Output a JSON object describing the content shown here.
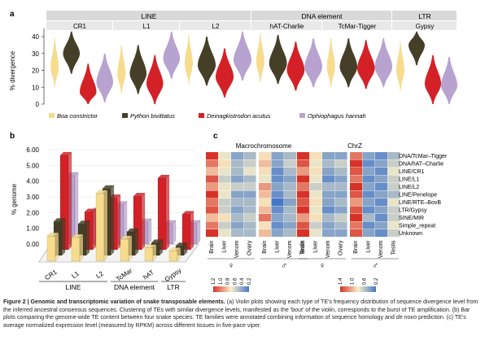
{
  "figure": {
    "panel_labels": [
      "a",
      "b",
      "c"
    ],
    "species_colors": {
      "boa": "#f7dc8d",
      "python": "#453f28",
      "deinagk": "#d32127",
      "ophio": "#b8a2cf"
    },
    "legend": [
      {
        "label": "Boa constrictor",
        "color": "#f7dc8d"
      },
      {
        "label": "Python bivittatus",
        "color": "#453f28"
      },
      {
        "label": "Deinagkistrodon acutus",
        "color": "#d32127"
      },
      {
        "label": "Ophiophagus hannah",
        "color": "#b8a2cf"
      }
    ]
  },
  "chart_data": [
    {
      "type": "violin",
      "panel": "a",
      "ylabel": "% divergence",
      "ylim": [
        0,
        45
      ],
      "yticks": [
        0,
        10,
        20,
        30,
        40
      ],
      "groups": [
        {
          "name": "LINE",
          "families": [
            "CR1",
            "L1",
            "L2"
          ]
        },
        {
          "name": "DNA element",
          "families": [
            "hAT-Charlie",
            "TcMar-Tigger"
          ]
        },
        {
          "name": "LTR",
          "families": [
            "Gypsy"
          ]
        }
      ],
      "series": [
        {
          "name": "Boa constrictor",
          "modes": [
            22,
            18,
            24,
            25,
            22,
            20
          ]
        },
        {
          "name": "Python bivittatus",
          "modes": [
            30,
            18,
            23,
            24,
            22,
            35
          ]
        },
        {
          "name": "Deinagkistrodon acutus",
          "modes": [
            7,
            12,
            16,
            20,
            21,
            12
          ]
        },
        {
          "name": "Ophiophagus hannah",
          "modes": [
            13,
            27,
            26,
            22,
            22,
            11
          ]
        }
      ]
    },
    {
      "type": "bar",
      "panel": "b",
      "ylabel": "% genome",
      "ylim": [
        0,
        6.5
      ],
      "yticks": [
        "0.00",
        "1.00",
        "2.00",
        "3.00",
        "4.00",
        "5.00",
        "6.00"
      ],
      "categories": [
        "CR1",
        "L1",
        "L2",
        "TcMar",
        "hAT",
        "Gypsy"
      ],
      "category_groups": [
        {
          "name": "LINE",
          "span": [
            0,
            2
          ]
        },
        {
          "name": "DNA element",
          "span": [
            3,
            4
          ]
        },
        {
          "name": "LTR",
          "span": [
            5,
            5
          ]
        }
      ],
      "series": [
        {
          "name": "Boa constrictor",
          "values": [
            1.6,
            1.5,
            4.3,
            1.4,
            0.85,
            0.65
          ]
        },
        {
          "name": "Python bivittatus",
          "values": [
            2.15,
            2.0,
            4.25,
            1.5,
            0.8,
            0.6
          ]
        },
        {
          "name": "Deinagkistrodon acutus",
          "values": [
            6.0,
            2.4,
            3.3,
            3.4,
            4.55,
            2.25
          ]
        },
        {
          "name": "Ophiophagus hannah",
          "values": [
            4.35,
            2.1,
            2.5,
            1.4,
            1.3,
            1.3
          ]
        }
      ]
    },
    {
      "type": "heatmap",
      "panel": "c",
      "panels": [
        {
          "title": "Macrochromosome",
          "tissues": [
            "Brain",
            "Liver",
            "Venom",
            "Ovary",
            "Brain",
            "Liver",
            "Venom",
            "Testis"
          ],
          "sex_markers": [
            "♀",
            "♂"
          ],
          "legend_ticks": [
            "1.2",
            "1.0",
            "0.8",
            "0.6",
            "0.4",
            "0.2"
          ]
        },
        {
          "title": "ChrZ",
          "tissues": [
            "Brain",
            "Liver",
            "Venom",
            "Ovary",
            "Brain",
            "Liver",
            "Venom",
            "Testis"
          ],
          "sex_markers": [
            "♀",
            "♂"
          ],
          "legend_ticks": [
            "1.4",
            "1.0",
            "0.6",
            "0.2"
          ]
        }
      ],
      "rows": [
        "DNA/TcMar–Tigger",
        "DNA/hAT–Charlie",
        "LINE/CR1",
        "LINE/L1",
        "LINE/L2",
        "LINE/Penelope",
        "LINE/RTE–BovB",
        "LTR/Gypsy",
        "SINE/MIR",
        "Simple_repeat",
        "Unknown"
      ],
      "values_macro": [
        [
          1.3,
          0.7,
          0.4,
          0.5,
          0.8,
          0.4,
          0.5,
          0.7
        ],
        [
          1.1,
          0.8,
          0.5,
          0.6,
          0.9,
          0.4,
          0.6,
          0.8
        ],
        [
          0.9,
          0.7,
          0.5,
          0.7,
          0.8,
          0.3,
          0.5,
          0.9
        ],
        [
          1.2,
          0.6,
          0.4,
          0.5,
          0.7,
          0.3,
          0.4,
          0.8
        ],
        [
          1.0,
          0.7,
          0.6,
          0.6,
          1.0,
          0.4,
          0.5,
          0.7
        ],
        [
          1.3,
          0.7,
          0.4,
          0.4,
          0.9,
          0.3,
          0.5,
          0.8
        ],
        [
          1.1,
          0.6,
          0.5,
          0.5,
          0.8,
          0.2,
          0.4,
          0.8
        ],
        [
          1.2,
          0.6,
          0.4,
          0.5,
          0.9,
          0.3,
          0.5,
          0.7
        ],
        [
          0.9,
          0.8,
          0.5,
          0.6,
          1.1,
          0.4,
          0.5,
          0.8
        ],
        [
          1.1,
          0.6,
          0.4,
          0.5,
          0.8,
          0.3,
          0.4,
          0.9
        ],
        [
          1.3,
          0.7,
          0.5,
          0.5,
          0.9,
          0.4,
          0.5,
          0.8
        ]
      ],
      "values_chrz": [
        [
          1.4,
          0.8,
          0.4,
          0.4,
          1.1,
          0.4,
          0.3,
          0.5
        ],
        [
          1.2,
          0.7,
          0.5,
          0.6,
          1.3,
          0.3,
          0.4,
          0.6
        ],
        [
          1.0,
          0.8,
          0.4,
          0.5,
          1.2,
          0.4,
          0.3,
          0.7
        ],
        [
          1.3,
          0.7,
          0.3,
          0.4,
          1.1,
          0.3,
          0.4,
          0.6
        ],
        [
          1.1,
          0.6,
          0.5,
          0.5,
          1.4,
          0.4,
          0.3,
          0.6
        ],
        [
          1.4,
          0.7,
          0.4,
          0.4,
          1.2,
          0.3,
          0.4,
          0.5
        ],
        [
          1.2,
          0.8,
          0.4,
          0.5,
          1.0,
          0.4,
          0.3,
          0.7
        ],
        [
          1.3,
          0.7,
          0.3,
          0.4,
          1.2,
          0.3,
          0.4,
          0.6
        ],
        [
          1.0,
          0.8,
          0.5,
          0.6,
          1.3,
          0.5,
          0.3,
          0.6
        ],
        [
          1.2,
          0.6,
          0.4,
          0.5,
          1.1,
          0.3,
          0.4,
          0.7
        ],
        [
          1.4,
          0.7,
          0.4,
          0.4,
          1.2,
          0.4,
          0.3,
          0.6
        ]
      ]
    }
  ],
  "caption": {
    "title": "Figure 2 | Genomic and transcriptomic variation of snake transposable elements.",
    "text_a": " (a) Violin plots showing each type of TE's frequency distribution of sequence divergence level from the inferred ancestral consensus sequences. Clustering of TEs with similar divergence levels, manifested as the 'bout' of the violin, corresponds to the burst of TE amplification.",
    "text_b": " (b) Bar plots comparing the genome-wide TE content between four snake species. TE families were annotated combining information of sequence homology and ",
    "text_b_italic": "de novo",
    "text_b2": " prediction.",
    "text_c": " (c) TE's average normalized expression level (measured by RPKM) across different tissues in five-pace viper."
  }
}
